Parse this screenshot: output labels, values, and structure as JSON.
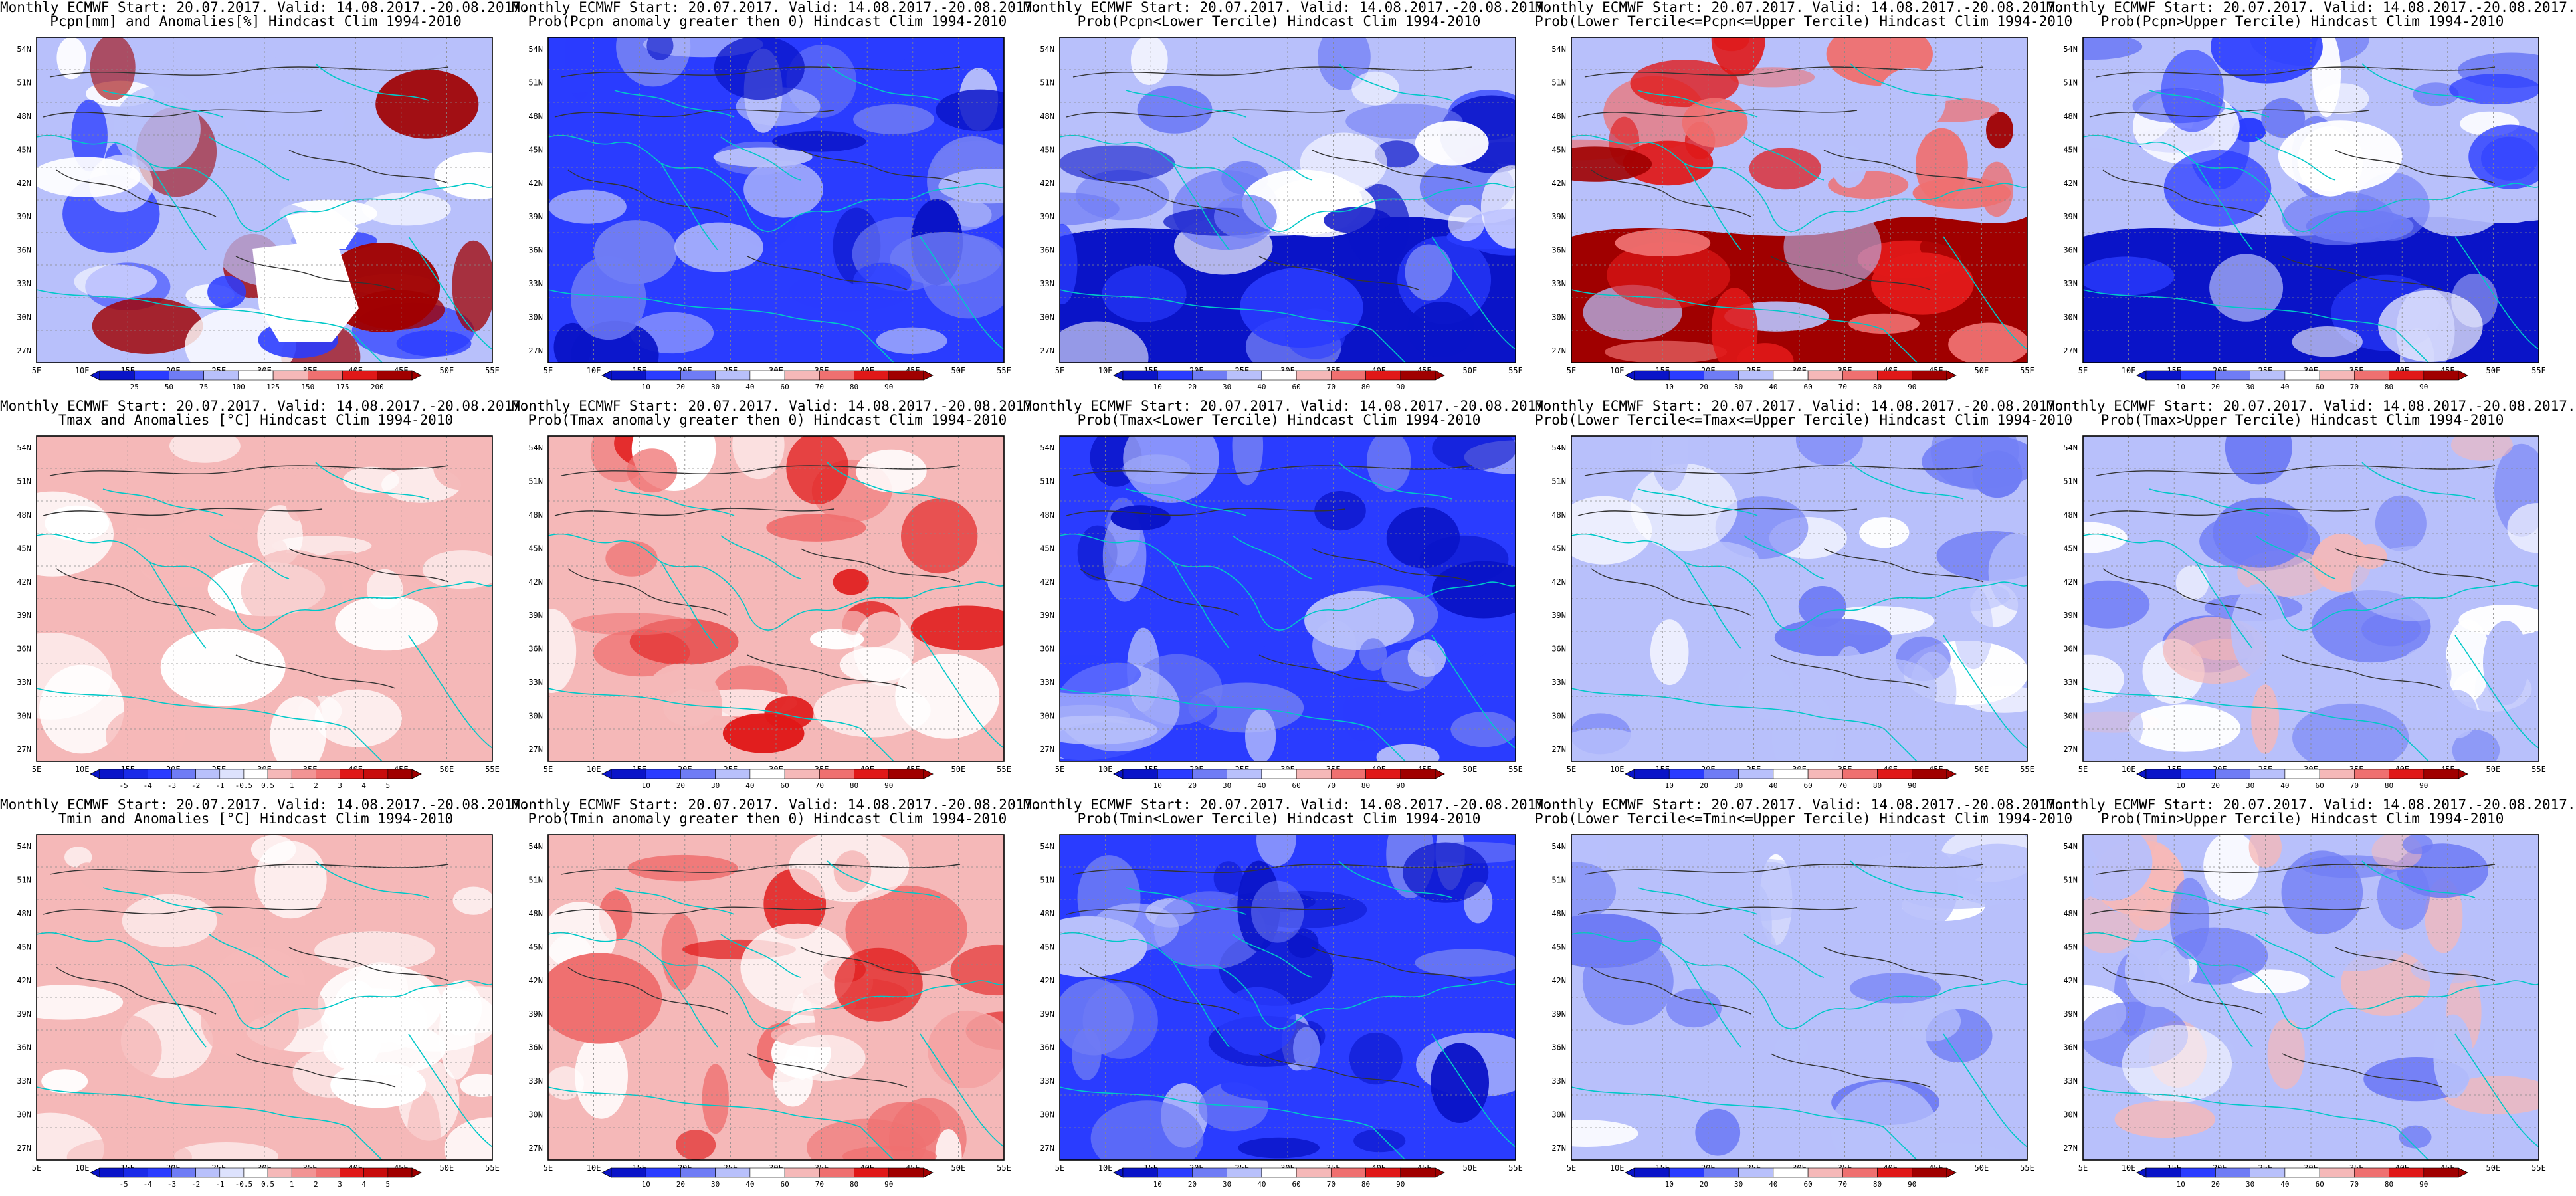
{
  "header_line": "Monthly ECMWF Start: 20.07.2017. Valid: 14.08.2017.-20.08.2017.",
  "lat_labels": [
    "54N",
    "51N",
    "48N",
    "45N",
    "42N",
    "39N",
    "36N",
    "33N",
    "30N",
    "27N"
  ],
  "lon_labels": [
    "5E",
    "10E",
    "15E",
    "20E",
    "25E",
    "30E",
    "35E",
    "40E",
    "45E",
    "50E",
    "55E"
  ],
  "colors": {
    "deep_blue": "#0a14c8",
    "blue": "#2a3cff",
    "mid_blue": "#6f7cf5",
    "light_blue": "#b8c0fb",
    "white": "#ffffff",
    "light_red": "#f5b8b8",
    "mid_red": "#ef7070",
    "red": "#e01818",
    "dark_red": "#a00000",
    "coast": "#00c8c8",
    "contour": "#333333",
    "frame": "#000000"
  },
  "scales": {
    "pcpn_anom": [
      "25",
      "50",
      "75",
      "100",
      "125",
      "150",
      "175",
      "200"
    ],
    "prob": [
      "10",
      "20",
      "30",
      "40",
      "60",
      "70",
      "80",
      "90"
    ],
    "temp_anom": [
      "-5",
      "-4",
      "-3",
      "-2",
      "-1",
      "-0.5",
      "0.5",
      "1",
      "2",
      "3",
      "4",
      "5"
    ]
  },
  "panels": [
    {
      "row": 0,
      "col": 0,
      "subtitle": "Pcpn[mm] and Anomalies[%] Hindcast Clim 1994-2010",
      "scale": "pcpn_anom",
      "style": "pcpn_anom"
    },
    {
      "row": 0,
      "col": 1,
      "subtitle": "Prob(Pcpn anomaly greater then 0) Hindcast Clim 1994-2010",
      "scale": "prob",
      "style": "blue_strong"
    },
    {
      "row": 0,
      "col": 2,
      "subtitle": "Prob(Pcpn<Lower Tercile) Hindcast Clim 1994-2010",
      "scale": "prob",
      "style": "blue_south"
    },
    {
      "row": 0,
      "col": 3,
      "subtitle": "Prob(Lower Tercile<=Pcpn<=Upper Tercile) Hindcast Clim 1994-2010",
      "scale": "prob",
      "style": "red_south"
    },
    {
      "row": 0,
      "col": 4,
      "subtitle": "Prob(Pcpn>Upper Tercile) Hindcast Clim 1994-2010",
      "scale": "prob",
      "style": "blue_south_light"
    },
    {
      "row": 1,
      "col": 0,
      "subtitle": "Tmax and Anomalies [°C] Hindcast Clim 1994-2010",
      "scale": "temp_anom",
      "style": "red_light"
    },
    {
      "row": 1,
      "col": 1,
      "subtitle": "Prob(Tmax anomaly greater then 0) Hindcast Clim 1994-2010",
      "scale": "prob",
      "style": "red_mid"
    },
    {
      "row": 1,
      "col": 2,
      "subtitle": "Prob(Tmax<Lower Tercile) Hindcast Clim 1994-2010",
      "scale": "prob",
      "style": "blue_strong"
    },
    {
      "row": 1,
      "col": 3,
      "subtitle": "Prob(Lower Tercile<=Tmax<=Upper Tercile) Hindcast Clim 1994-2010",
      "scale": "prob",
      "style": "blue_light"
    },
    {
      "row": 1,
      "col": 4,
      "subtitle": "Prob(Tmax>Upper Tercile) Hindcast Clim 1994-2010",
      "scale": "prob",
      "style": "mixed"
    },
    {
      "row": 2,
      "col": 0,
      "subtitle": "Tmin and Anomalies [°C] Hindcast Clim 1994-2010",
      "scale": "temp_anom",
      "style": "red_light"
    },
    {
      "row": 2,
      "col": 1,
      "subtitle": "Prob(Tmin anomaly greater then 0) Hindcast Clim 1994-2010",
      "scale": "prob",
      "style": "red_mid"
    },
    {
      "row": 2,
      "col": 2,
      "subtitle": "Prob(Tmin<Lower Tercile) Hindcast Clim 1994-2010",
      "scale": "prob",
      "style": "blue_strong"
    },
    {
      "row": 2,
      "col": 3,
      "subtitle": "Prob(Lower Tercile<=Tmin<=Upper Tercile) Hindcast Clim 1994-2010",
      "scale": "prob",
      "style": "blue_light"
    },
    {
      "row": 2,
      "col": 4,
      "subtitle": "Prob(Tmin>Upper Tercile) Hindcast Clim 1994-2010",
      "scale": "prob",
      "style": "mixed"
    }
  ]
}
